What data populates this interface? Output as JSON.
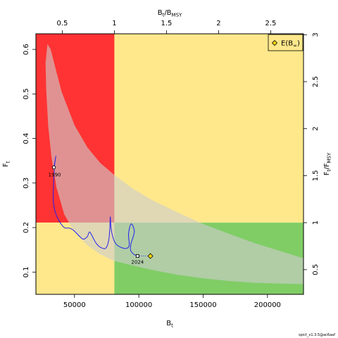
{
  "chart_data": {
    "type": "line",
    "bottom_axis": {
      "title": "B",
      "title_subscript": "t",
      "range": [
        20000,
        228000
      ],
      "ticks": [
        50000,
        100000,
        150000,
        200000
      ],
      "tick_labels": [
        "50000",
        "100000",
        "150000",
        "200000"
      ]
    },
    "left_axis": {
      "title": "F",
      "title_subscript": "t",
      "range": [
        0.05,
        0.635
      ],
      "ticks": [
        0.1,
        0.2,
        0.3,
        0.4,
        0.5,
        0.6
      ],
      "tick_labels": [
        "0.1",
        "0.2",
        "0.3",
        "0.4",
        "0.5",
        "0.6"
      ]
    },
    "top_axis": {
      "title_parts": [
        "B",
        "t",
        "/B",
        "MSY"
      ],
      "ticks": [
        0.5,
        1,
        1.5,
        2,
        2.5
      ],
      "tick_labels": [
        "0.5",
        "1",
        "1.5",
        "2",
        "2.5"
      ]
    },
    "right_axis": {
      "title_parts": [
        "F",
        "t",
        "/F",
        "MSY"
      ],
      "ticks": [
        0.5,
        1,
        1.5,
        2,
        2.5,
        3
      ],
      "tick_labels": [
        "0.5",
        "1",
        "1.5",
        "2",
        "2.5",
        "3"
      ]
    },
    "bmsy": 81000,
    "fmsy": 0.211,
    "zone_colors": {
      "overfishing_overfished": "#ff3333",
      "caution": "#ffe88c",
      "healthy": "#80cd66",
      "confidence_region": "rgba(205,205,205,0.62)",
      "trajectory": "#2222ee"
    },
    "confidence_region": {
      "upper": [
        [
          29000,
          0.612
        ],
        [
          31500,
          0.6
        ],
        [
          35000,
          0.56
        ],
        [
          40000,
          0.505
        ],
        [
          50000,
          0.43
        ],
        [
          60000,
          0.38
        ],
        [
          70000,
          0.345
        ],
        [
          81000,
          0.318
        ],
        [
          95000,
          0.288
        ],
        [
          110000,
          0.262
        ],
        [
          130000,
          0.234
        ],
        [
          150000,
          0.208
        ],
        [
          170000,
          0.186
        ],
        [
          190000,
          0.165
        ],
        [
          210000,
          0.147
        ],
        [
          228000,
          0.131
        ]
      ],
      "lower": [
        [
          228000,
          0.073
        ],
        [
          210000,
          0.074
        ],
        [
          190000,
          0.076
        ],
        [
          170000,
          0.08
        ],
        [
          150000,
          0.086
        ],
        [
          130000,
          0.094
        ],
        [
          110000,
          0.105
        ],
        [
          95000,
          0.115
        ],
        [
          81000,
          0.125
        ],
        [
          70000,
          0.14
        ],
        [
          60000,
          0.16
        ],
        [
          50000,
          0.19
        ],
        [
          42000,
          0.23
        ],
        [
          36000,
          0.29
        ],
        [
          32000,
          0.36
        ],
        [
          29500,
          0.43
        ],
        [
          28000,
          0.51
        ],
        [
          27500,
          0.57
        ]
      ]
    },
    "trajectory": [
      [
        34000,
        0.335
      ],
      [
        35500,
        0.36
      ],
      [
        34500,
        0.34
      ],
      [
        33800,
        0.3
      ],
      [
        33500,
        0.26
      ],
      [
        35000,
        0.235
      ],
      [
        38000,
        0.215
      ],
      [
        42000,
        0.2
      ],
      [
        45000,
        0.199
      ],
      [
        47000,
        0.198
      ],
      [
        50000,
        0.192
      ],
      [
        54000,
        0.18
      ],
      [
        57000,
        0.174
      ],
      [
        60000,
        0.18
      ],
      [
        61500,
        0.19
      ],
      [
        63000,
        0.185
      ],
      [
        65000,
        0.174
      ],
      [
        67000,
        0.164
      ],
      [
        70000,
        0.156
      ],
      [
        74000,
        0.153
      ],
      [
        76500,
        0.17
      ],
      [
        77500,
        0.2
      ],
      [
        77800,
        0.224
      ],
      [
        78300,
        0.202
      ],
      [
        79500,
        0.182
      ],
      [
        81500,
        0.166
      ],
      [
        85000,
        0.157
      ],
      [
        90000,
        0.153
      ],
      [
        92500,
        0.16
      ],
      [
        92000,
        0.185
      ],
      [
        93500,
        0.206
      ],
      [
        95000,
        0.206
      ],
      [
        96500,
        0.192
      ],
      [
        95500,
        0.178
      ],
      [
        94000,
        0.165
      ],
      [
        93500,
        0.15
      ],
      [
        96000,
        0.14
      ],
      [
        99000,
        0.137
      ]
    ],
    "start_point": {
      "x": 34000,
      "y": 0.335,
      "label": "1990"
    },
    "end_point": {
      "x": 99000,
      "y": 0.136,
      "label": "2024"
    },
    "expected_point": {
      "x": 109000,
      "y": 0.136
    },
    "legend": {
      "position": "top-right",
      "label_main": "E(B",
      "label_sub": "∞",
      "label_close": ")"
    },
    "footer": "spict_v1.3.5@ac6aaf"
  }
}
